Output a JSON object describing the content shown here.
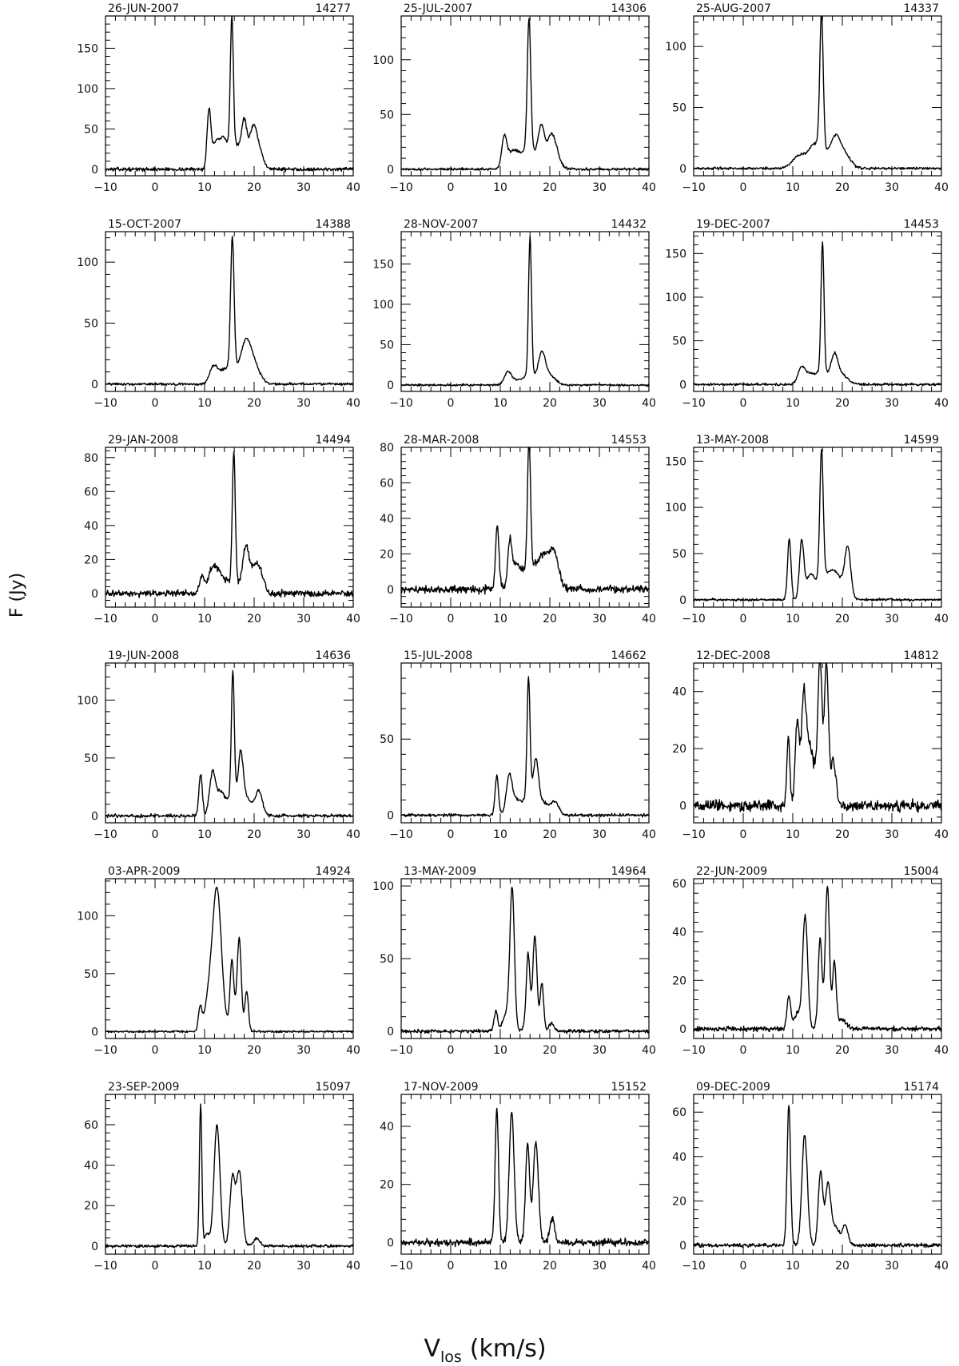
{
  "figure": {
    "ylabel": "F (Jy)",
    "xlabel_main": "V",
    "xlabel_sub": "los",
    "xlabel_units": "(km/s)"
  },
  "chart_data": [
    {
      "type": "line",
      "date": "26-JUN-2007",
      "id": "14277",
      "xlim": [
        -10,
        40
      ],
      "xticks": [
        -10,
        0,
        10,
        20,
        30,
        40
      ],
      "ylim": [
        -8,
        190
      ],
      "yticks": [
        0,
        50,
        100,
        150
      ],
      "noise": 1.5,
      "peaks": [
        {
          "v": 10.9,
          "a": 72,
          "w": 0.4
        },
        {
          "v": 12.2,
          "a": 28,
          "w": 0.6
        },
        {
          "v": 13.6,
          "a": 24,
          "w": 0.7
        },
        {
          "v": 15.5,
          "a": 160,
          "w": 0.3
        },
        {
          "v": 15.6,
          "a": 20,
          "w": 1.6
        },
        {
          "v": 18.0,
          "a": 42,
          "w": 0.5
        },
        {
          "v": 19.8,
          "a": 40,
          "w": 0.7
        },
        {
          "v": 17.3,
          "a": 14,
          "w": 2.5
        },
        {
          "v": 21.0,
          "a": 18,
          "w": 0.8
        }
      ]
    },
    {
      "type": "line",
      "date": "25-JUL-2007",
      "id": "14306",
      "xlim": [
        -10,
        40
      ],
      "xticks": [
        -10,
        0,
        10,
        20,
        30,
        40
      ],
      "ylim": [
        -6,
        140
      ],
      "yticks": [
        0,
        50,
        100
      ],
      "noise": 0.8,
      "peaks": [
        {
          "v": 10.8,
          "a": 26,
          "w": 0.5
        },
        {
          "v": 12.5,
          "a": 15,
          "w": 1.2
        },
        {
          "v": 15.8,
          "a": 120,
          "w": 0.35
        },
        {
          "v": 15.6,
          "a": 12,
          "w": 1.5
        },
        {
          "v": 18.3,
          "a": 30,
          "w": 0.6
        },
        {
          "v": 20.3,
          "a": 25,
          "w": 0.8
        },
        {
          "v": 18.0,
          "a": 8,
          "w": 2.5
        },
        {
          "v": 21.5,
          "a": 8,
          "w": 0.7
        }
      ]
    },
    {
      "type": "line",
      "date": "25-AUG-2007",
      "id": "14337",
      "xlim": [
        -10,
        40
      ],
      "xticks": [
        -10,
        0,
        10,
        20,
        30,
        40
      ],
      "ylim": [
        -6,
        125
      ],
      "yticks": [
        0,
        50,
        100
      ],
      "noise": 0.7,
      "peaks": [
        {
          "v": 11.5,
          "a": 11,
          "w": 1.5
        },
        {
          "v": 14.0,
          "a": 10,
          "w": 1.0
        },
        {
          "v": 15.8,
          "a": 110,
          "w": 0.35
        },
        {
          "v": 15.6,
          "a": 15,
          "w": 1.2
        },
        {
          "v": 18.5,
          "a": 22,
          "w": 1.0
        },
        {
          "v": 20.3,
          "a": 12,
          "w": 1.3
        }
      ]
    },
    {
      "type": "line",
      "date": "15-OCT-2007",
      "id": "14388",
      "xlim": [
        -10,
        40
      ],
      "xticks": [
        -10,
        0,
        10,
        20,
        30,
        40
      ],
      "ylim": [
        -6,
        125
      ],
      "yticks": [
        0,
        50,
        100
      ],
      "noise": 0.7,
      "peaks": [
        {
          "v": 11.8,
          "a": 14,
          "w": 0.8
        },
        {
          "v": 13.6,
          "a": 7,
          "w": 1.0
        },
        {
          "v": 15.6,
          "a": 108,
          "w": 0.35
        },
        {
          "v": 15.6,
          "a": 12,
          "w": 1.3
        },
        {
          "v": 18.3,
          "a": 30,
          "w": 1.0
        },
        {
          "v": 20.0,
          "a": 15,
          "w": 1.2
        }
      ]
    },
    {
      "type": "line",
      "date": "28-NOV-2007",
      "id": "14432",
      "xlim": [
        -10,
        40
      ],
      "xticks": [
        -10,
        0,
        10,
        20,
        30,
        40
      ],
      "ylim": [
        -8,
        190
      ],
      "yticks": [
        0,
        50,
        100,
        150
      ],
      "noise": 0.9,
      "peaks": [
        {
          "v": 11.5,
          "a": 15,
          "w": 0.7
        },
        {
          "v": 13.0,
          "a": 5,
          "w": 1.0
        },
        {
          "v": 16.0,
          "a": 172,
          "w": 0.3
        },
        {
          "v": 15.9,
          "a": 12,
          "w": 1.3
        },
        {
          "v": 18.4,
          "a": 33,
          "w": 0.7
        },
        {
          "v": 19.8,
          "a": 12,
          "w": 1.3
        }
      ]
    },
    {
      "type": "line",
      "date": "19-DEC-2007",
      "id": "14453",
      "xlim": [
        -10,
        40
      ],
      "xticks": [
        -10,
        0,
        10,
        20,
        30,
        40
      ],
      "ylim": [
        -8,
        175
      ],
      "yticks": [
        0,
        50,
        100,
        150
      ],
      "noise": 0.9,
      "peaks": [
        {
          "v": 11.7,
          "a": 17,
          "w": 0.7
        },
        {
          "v": 13.2,
          "a": 10,
          "w": 1.0
        },
        {
          "v": 16.0,
          "a": 150,
          "w": 0.3
        },
        {
          "v": 15.8,
          "a": 14,
          "w": 1.3
        },
        {
          "v": 18.4,
          "a": 28,
          "w": 0.7
        },
        {
          "v": 19.8,
          "a": 11,
          "w": 1.3
        }
      ]
    },
    {
      "type": "line",
      "date": "29-JAN-2008",
      "id": "14494",
      "xlim": [
        -10,
        40
      ],
      "xticks": [
        -10,
        0,
        10,
        20,
        30,
        40
      ],
      "ylim": [
        -8,
        86
      ],
      "yticks": [
        0,
        20,
        40,
        60,
        80
      ],
      "noise": 1.3,
      "peaks": [
        {
          "v": 9.5,
          "a": 10,
          "w": 0.5
        },
        {
          "v": 11.5,
          "a": 14,
          "w": 0.8
        },
        {
          "v": 13.0,
          "a": 9,
          "w": 0.8
        },
        {
          "v": 15.9,
          "a": 76,
          "w": 0.3
        },
        {
          "v": 15.6,
          "a": 8,
          "w": 1.5
        },
        {
          "v": 18.3,
          "a": 24,
          "w": 0.6
        },
        {
          "v": 20.0,
          "a": 14,
          "w": 1.0
        },
        {
          "v": 21.3,
          "a": 8,
          "w": 0.8
        }
      ]
    },
    {
      "type": "line",
      "date": "28-MAR-2008",
      "id": "14553",
      "xlim": [
        -10,
        40
      ],
      "xticks": [
        -10,
        0,
        10,
        20,
        30,
        40
      ],
      "ylim": [
        -10,
        80
      ],
      "yticks": [
        0,
        20,
        40,
        60,
        80
      ],
      "noise": 1.5,
      "peaks": [
        {
          "v": 9.4,
          "a": 36,
          "w": 0.35
        },
        {
          "v": 11.9,
          "a": 23,
          "w": 0.4
        },
        {
          "v": 13.0,
          "a": 12,
          "w": 0.8
        },
        {
          "v": 15.8,
          "a": 72,
          "w": 0.3
        },
        {
          "v": 15.7,
          "a": 10,
          "w": 1.2
        },
        {
          "v": 19.0,
          "a": 14,
          "w": 1.2
        },
        {
          "v": 21.0,
          "a": 14,
          "w": 0.8
        },
        {
          "v": 18.0,
          "a": 6,
          "w": 3.0
        }
      ]
    },
    {
      "type": "line",
      "date": "13-MAY-2008",
      "id": "14599",
      "xlim": [
        -10,
        40
      ],
      "xticks": [
        -10,
        0,
        10,
        20,
        30,
        40
      ],
      "ylim": [
        -8,
        165
      ],
      "yticks": [
        0,
        50,
        100,
        150
      ],
      "noise": 0.9,
      "peaks": [
        {
          "v": 9.3,
          "a": 66,
          "w": 0.35
        },
        {
          "v": 11.8,
          "a": 62,
          "w": 0.45
        },
        {
          "v": 13.5,
          "a": 22,
          "w": 0.8
        },
        {
          "v": 15.8,
          "a": 140,
          "w": 0.35
        },
        {
          "v": 16.0,
          "a": 18,
          "w": 1.6
        },
        {
          "v": 18.6,
          "a": 26,
          "w": 1.5
        },
        {
          "v": 21.1,
          "a": 52,
          "w": 0.6
        }
      ]
    },
    {
      "type": "line",
      "date": "19-JUN-2008",
      "id": "14636",
      "xlim": [
        -10,
        40
      ],
      "xticks": [
        -10,
        0,
        10,
        20,
        30,
        40
      ],
      "ylim": [
        -6,
        132
      ],
      "yticks": [
        0,
        50,
        100
      ],
      "noise": 1.0,
      "peaks": [
        {
          "v": 9.2,
          "a": 36,
          "w": 0.35
        },
        {
          "v": 11.6,
          "a": 36,
          "w": 0.6
        },
        {
          "v": 13.2,
          "a": 18,
          "w": 0.8
        },
        {
          "v": 15.7,
          "a": 110,
          "w": 0.3
        },
        {
          "v": 15.6,
          "a": 14,
          "w": 1.3
        },
        {
          "v": 17.3,
          "a": 42,
          "w": 0.5
        },
        {
          "v": 18.5,
          "a": 14,
          "w": 1.2
        },
        {
          "v": 21.0,
          "a": 20,
          "w": 0.7
        }
      ]
    },
    {
      "type": "line",
      "date": "15-JUL-2008",
      "id": "14662",
      "xlim": [
        -10,
        40
      ],
      "xticks": [
        -10,
        0,
        10,
        20,
        30,
        40
      ],
      "ylim": [
        -5,
        100
      ],
      "yticks": [
        0,
        50
      ],
      "noise": 0.7,
      "peaks": [
        {
          "v": 9.3,
          "a": 26,
          "w": 0.35
        },
        {
          "v": 11.8,
          "a": 25,
          "w": 0.6
        },
        {
          "v": 13.2,
          "a": 8,
          "w": 0.8
        },
        {
          "v": 15.7,
          "a": 78,
          "w": 0.3
        },
        {
          "v": 15.8,
          "a": 12,
          "w": 1.3
        },
        {
          "v": 17.2,
          "a": 26,
          "w": 0.5
        },
        {
          "v": 18.5,
          "a": 8,
          "w": 1.2
        },
        {
          "v": 21.0,
          "a": 8,
          "w": 0.8
        }
      ]
    },
    {
      "type": "line",
      "date": "12-DEC-2008",
      "id": "14812",
      "xlim": [
        -10,
        40
      ],
      "xticks": [
        -10,
        0,
        10,
        20,
        30,
        40
      ],
      "ylim": [
        -6,
        50
      ],
      "yticks": [
        0,
        20,
        40
      ],
      "noise": 1.4,
      "peaks": [
        {
          "v": 9.1,
          "a": 24,
          "w": 0.3
        },
        {
          "v": 10.9,
          "a": 28,
          "w": 0.4
        },
        {
          "v": 12.2,
          "a": 31,
          "w": 0.45
        },
        {
          "v": 13.3,
          "a": 14,
          "w": 0.8
        },
        {
          "v": 15.5,
          "a": 46,
          "w": 0.4
        },
        {
          "v": 16.8,
          "a": 46,
          "w": 0.4
        },
        {
          "v": 18.2,
          "a": 14,
          "w": 0.5
        },
        {
          "v": 14.5,
          "a": 8,
          "w": 2.0
        }
      ]
    },
    {
      "type": "line",
      "date": "03-APR-2009",
      "id": "14924",
      "xlim": [
        -10,
        40
      ],
      "xticks": [
        -10,
        0,
        10,
        20,
        30,
        40
      ],
      "ylim": [
        -6,
        132
      ],
      "yticks": [
        0,
        50,
        100
      ],
      "noise": 0.6,
      "peaks": [
        {
          "v": 9.1,
          "a": 20,
          "w": 0.35
        },
        {
          "v": 12.5,
          "a": 122,
          "w": 0.9
        },
        {
          "v": 10.8,
          "a": 25,
          "w": 0.8
        },
        {
          "v": 15.5,
          "a": 50,
          "w": 0.35
        },
        {
          "v": 17.0,
          "a": 70,
          "w": 0.4
        },
        {
          "v": 18.5,
          "a": 34,
          "w": 0.35
        },
        {
          "v": 16.2,
          "a": 15,
          "w": 1.0
        }
      ]
    },
    {
      "type": "line",
      "date": "13-MAY-2009",
      "id": "14964",
      "xlim": [
        -10,
        40
      ],
      "xticks": [
        -10,
        0,
        10,
        20,
        30,
        40
      ],
      "ylim": [
        -5,
        105
      ],
      "yticks": [
        0,
        50,
        100
      ],
      "noise": 0.8,
      "peaks": [
        {
          "v": 9.1,
          "a": 14,
          "w": 0.35
        },
        {
          "v": 12.4,
          "a": 95,
          "w": 0.45
        },
        {
          "v": 11.3,
          "a": 12,
          "w": 0.8
        },
        {
          "v": 15.6,
          "a": 46,
          "w": 0.35
        },
        {
          "v": 17.0,
          "a": 58,
          "w": 0.4
        },
        {
          "v": 18.4,
          "a": 32,
          "w": 0.35
        },
        {
          "v": 16.3,
          "a": 10,
          "w": 1.0
        },
        {
          "v": 20.3,
          "a": 5,
          "w": 0.5
        }
      ]
    },
    {
      "type": "line",
      "date": "22-JUN-2009",
      "id": "15004",
      "xlim": [
        -10,
        40
      ],
      "xticks": [
        -10,
        0,
        10,
        20,
        30,
        40
      ],
      "ylim": [
        -4,
        62
      ],
      "yticks": [
        0,
        20,
        40,
        60
      ],
      "noise": 0.7,
      "peaks": [
        {
          "v": 9.2,
          "a": 13,
          "w": 0.35
        },
        {
          "v": 12.5,
          "a": 46,
          "w": 0.5
        },
        {
          "v": 10.9,
          "a": 6,
          "w": 0.8
        },
        {
          "v": 15.5,
          "a": 32,
          "w": 0.35
        },
        {
          "v": 17.0,
          "a": 53,
          "w": 0.4
        },
        {
          "v": 18.4,
          "a": 26,
          "w": 0.35
        },
        {
          "v": 16.3,
          "a": 8,
          "w": 1.0
        },
        {
          "v": 19.8,
          "a": 4,
          "w": 1.0
        }
      ]
    },
    {
      "type": "line",
      "date": "23-SEP-2009",
      "id": "15097",
      "xlim": [
        -10,
        40
      ],
      "xticks": [
        -10,
        0,
        10,
        20,
        30,
        40
      ],
      "ylim": [
        -4,
        75
      ],
      "yticks": [
        0,
        20,
        40,
        60
      ],
      "noise": 0.5,
      "peaks": [
        {
          "v": 9.2,
          "a": 70,
          "w": 0.25
        },
        {
          "v": 12.5,
          "a": 60,
          "w": 0.6
        },
        {
          "v": 10.5,
          "a": 6,
          "w": 0.5
        },
        {
          "v": 15.6,
          "a": 33,
          "w": 0.5
        },
        {
          "v": 17.0,
          "a": 37,
          "w": 0.6
        },
        {
          "v": 20.5,
          "a": 4,
          "w": 0.6
        }
      ]
    },
    {
      "type": "line",
      "date": "17-NOV-2009",
      "id": "15152",
      "xlim": [
        -10,
        40
      ],
      "xticks": [
        -10,
        0,
        10,
        20,
        30,
        40
      ],
      "ylim": [
        -4,
        51
      ],
      "yticks": [
        0,
        20,
        40
      ],
      "noise": 0.8,
      "peaks": [
        {
          "v": 9.3,
          "a": 46,
          "w": 0.35
        },
        {
          "v": 12.3,
          "a": 45,
          "w": 0.5
        },
        {
          "v": 15.5,
          "a": 31,
          "w": 0.4
        },
        {
          "v": 17.2,
          "a": 32,
          "w": 0.5
        },
        {
          "v": 20.5,
          "a": 8,
          "w": 0.5
        },
        {
          "v": 16.4,
          "a": 4,
          "w": 1.0
        }
      ]
    },
    {
      "type": "line",
      "date": "09-DEC-2009",
      "id": "15174",
      "xlim": [
        -10,
        40
      ],
      "xticks": [
        -10,
        0,
        10,
        20,
        30,
        40
      ],
      "ylim": [
        -4,
        68
      ],
      "yticks": [
        0,
        20,
        40,
        60
      ],
      "noise": 0.6,
      "peaks": [
        {
          "v": 9.2,
          "a": 63,
          "w": 0.35
        },
        {
          "v": 12.4,
          "a": 50,
          "w": 0.55
        },
        {
          "v": 15.6,
          "a": 33,
          "w": 0.45
        },
        {
          "v": 17.1,
          "a": 27,
          "w": 0.55
        },
        {
          "v": 18.6,
          "a": 8,
          "w": 0.8
        },
        {
          "v": 20.6,
          "a": 9,
          "w": 0.55
        }
      ]
    }
  ]
}
